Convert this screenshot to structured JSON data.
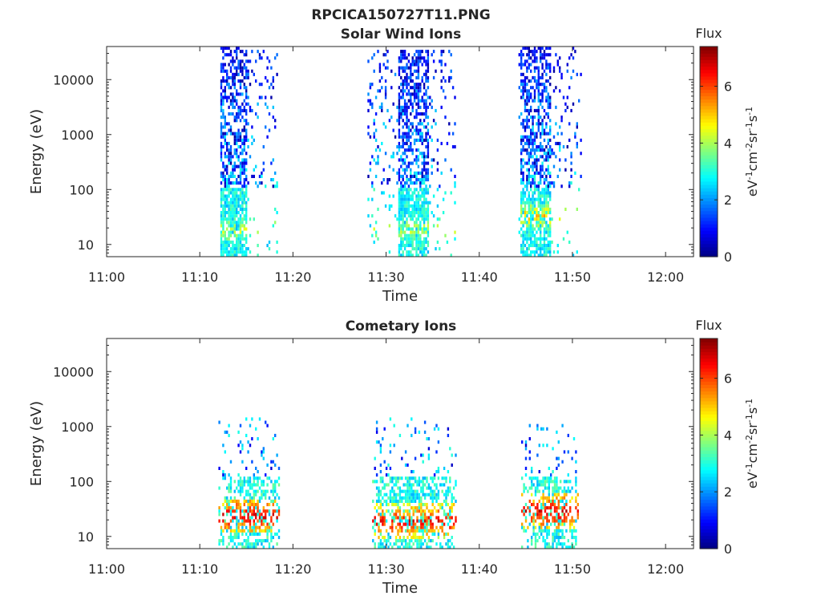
{
  "figure": {
    "title": "RPCICA150727T11.PNG"
  },
  "panels": [
    {
      "title": "Solar Wind Ions",
      "xlabel": "Time",
      "ylabel": "Energy (eV)",
      "colorbar": {
        "label": "Flux",
        "unit": "eV-1cm-2sr-1s-1",
        "ticks": [
          "0",
          "2",
          "4",
          "6"
        ]
      }
    },
    {
      "title": "Cometary Ions",
      "xlabel": "Time",
      "ylabel": "Energy (eV)",
      "colorbar": {
        "label": "Flux",
        "unit": "eV-1cm-2sr-1s-1",
        "ticks": [
          "0",
          "2",
          "4",
          "6"
        ]
      }
    }
  ],
  "chart_data": [
    {
      "type": "heatmap",
      "title": "Solar Wind Ions",
      "xlabel": "Time",
      "ylabel": "Energy (eV)",
      "x_ticks": [
        "11:00",
        "11:10",
        "11:20",
        "11:30",
        "11:40",
        "11:50",
        "12:00"
      ],
      "y_ticks": [
        "10",
        "100",
        "1000",
        "10000"
      ],
      "xlim": [
        "11:00",
        "12:03"
      ],
      "ylim": [
        6,
        40000
      ],
      "y_scale": "log",
      "colorscale": "jet",
      "clim": [
        0,
        7.4
      ],
      "colorbar_label": "Flux",
      "colorbar_unit": "eV-1cm-2sr-1s-1",
      "colorbar_ticks": [
        0,
        2,
        4,
        6
      ],
      "bursts": [
        {
          "t_start": "11:12.2",
          "t_end": "11:18.3",
          "dense_end": "11:15.0",
          "e_low": 6,
          "e_high": 40000,
          "peak_flux": 5.0,
          "peak_energy": 20
        },
        {
          "t_start": "11:28.0",
          "t_end": "11:37.3",
          "dense_start": "11:31.2",
          "dense_end": "11:34.6",
          "e_low": 6,
          "e_high": 35000,
          "peak_flux": 4.8,
          "peak_energy": 20
        },
        {
          "t_start": "11:44.2",
          "t_end": "11:51.0",
          "dense_start": "11:44.3",
          "dense_end": "11:47.7",
          "e_low": 6,
          "e_high": 38000,
          "peak_flux": 5.5,
          "peak_energy": 35
        }
      ]
    },
    {
      "type": "heatmap",
      "title": "Cometary Ions",
      "xlabel": "Time",
      "ylabel": "Energy (eV)",
      "x_ticks": [
        "11:00",
        "11:10",
        "11:20",
        "11:30",
        "11:40",
        "11:50",
        "12:00"
      ],
      "y_ticks": [
        "10",
        "100",
        "1000",
        "10000"
      ],
      "xlim": [
        "11:00",
        "12:03"
      ],
      "ylim": [
        6,
        40000
      ],
      "y_scale": "log",
      "colorscale": "jet",
      "clim": [
        0,
        7.4
      ],
      "colorbar_label": "Flux",
      "colorbar_unit": "eV-1cm-2sr-1s-1",
      "colorbar_ticks": [
        0,
        2,
        4,
        6
      ],
      "bursts": [
        {
          "t_start": "11:12.0",
          "t_end": "11:18.5",
          "e_low": 6,
          "e_high": 1400,
          "peak_flux": 7.2,
          "peak_energy": 25
        },
        {
          "t_start": "11:28.5",
          "t_end": "11:37.5",
          "e_low": 6,
          "e_high": 1500,
          "peak_flux": 7.0,
          "peak_energy": 20
        },
        {
          "t_start": "11:44.5",
          "t_end": "11:50.5",
          "e_low": 6,
          "e_high": 1100,
          "peak_flux": 7.2,
          "peak_energy": 30
        }
      ]
    }
  ]
}
